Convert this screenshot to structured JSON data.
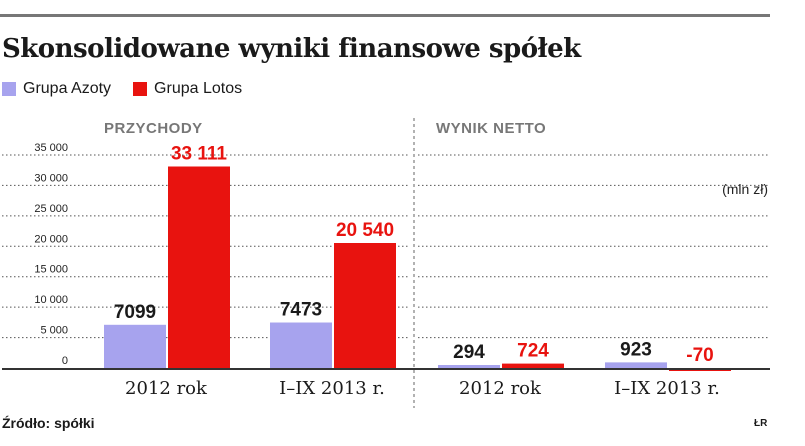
{
  "title": "Skonsolidowane wyniki finansowe spółek",
  "legend": [
    {
      "label": "Grupa Azoty",
      "color": "#a7a3ee"
    },
    {
      "label": "Grupa Lotos",
      "color": "#e8130f"
    }
  ],
  "source": "Źródło: spółki",
  "author": "ŁR",
  "chart_data": [
    {
      "type": "bar",
      "title": "PRZYCHODY",
      "categories": [
        "2012 rok",
        "I–IX 2013 r."
      ],
      "series": [
        {
          "name": "Grupa Azoty",
          "values": [
            7099,
            7473
          ],
          "labels": [
            "7099",
            "7473"
          ]
        },
        {
          "name": "Grupa Lotos",
          "values": [
            33111,
            20540
          ],
          "labels": [
            "33 111",
            "20 540"
          ]
        }
      ],
      "yticks": [
        0,
        5000,
        10000,
        15000,
        20000,
        25000,
        30000,
        35000
      ],
      "ytick_labels": [
        "0",
        "5 000",
        "10 000",
        "15 000",
        "20 000",
        "25 000",
        "30 000",
        "35 000"
      ],
      "ylim": [
        0,
        35000
      ],
      "grid": true
    },
    {
      "type": "bar",
      "title": "WYNIK NETTO",
      "unit": "(mln zł)",
      "categories": [
        "2012 rok",
        "I–IX 2013 r."
      ],
      "series": [
        {
          "name": "Grupa Azoty",
          "values": [
            294,
            923
          ],
          "labels": [
            "294",
            "923"
          ]
        },
        {
          "name": "Grupa Lotos",
          "values": [
            724,
            -70
          ],
          "labels": [
            "724",
            "-70"
          ]
        }
      ],
      "ylim": [
        -70,
        35000
      ]
    }
  ]
}
